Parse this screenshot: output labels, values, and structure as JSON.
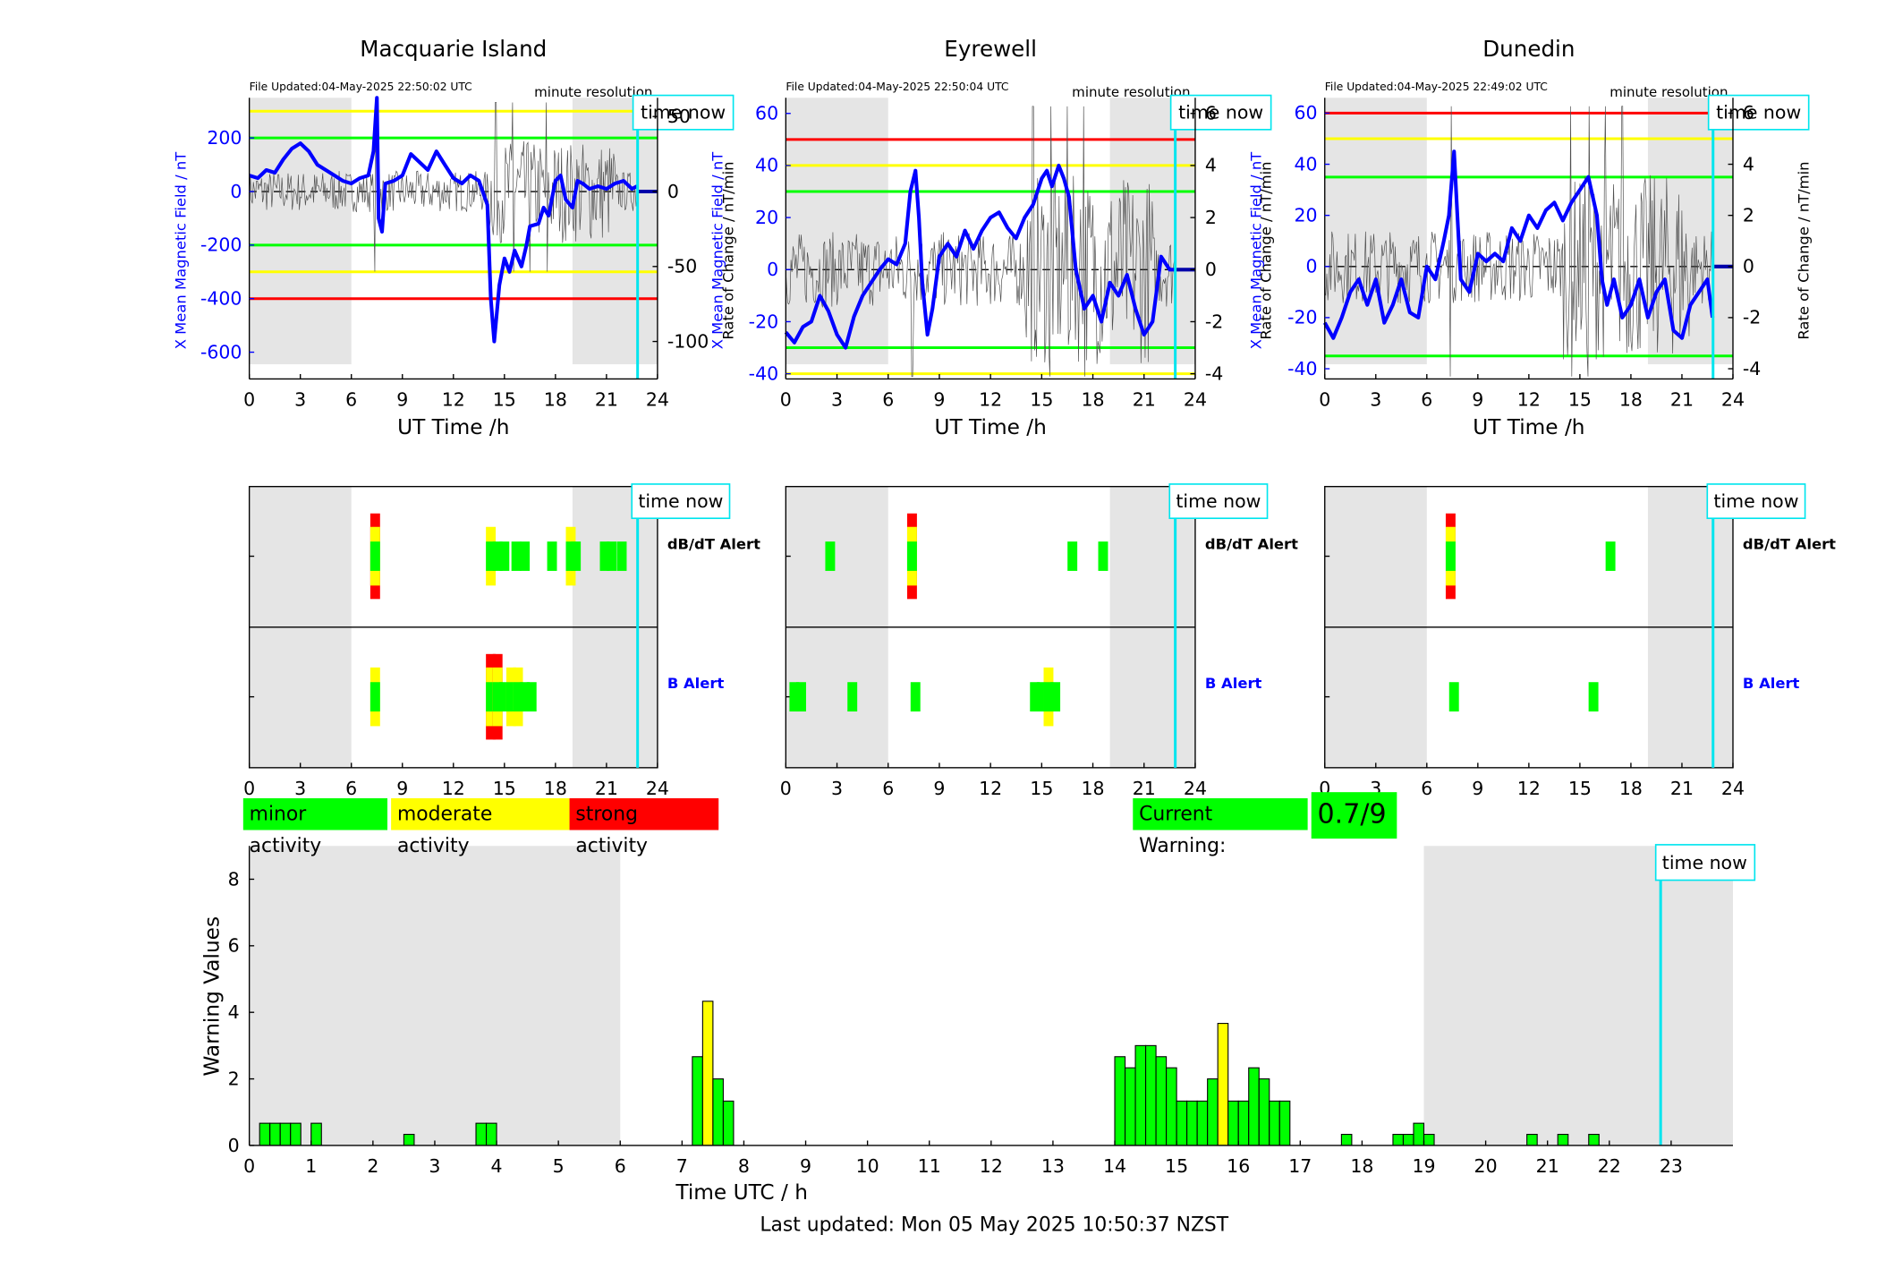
{
  "stations": [
    {
      "name": "Macquarie Island",
      "file_updated": "File Updated:04-May-2025 22:50:02 UTC",
      "resolution": "minute resolution",
      "ylabel_left": "X Mean Magnetic Field / nT",
      "ylabel_right": "Rate of Change / nT/min",
      "left_ticks": [
        200,
        0,
        -200,
        -400,
        -600
      ],
      "right_ticks": [
        50,
        0,
        -50,
        -100
      ],
      "left_range": [
        -700,
        350
      ],
      "right_range": [
        -125,
        62.5
      ],
      "thresholds": [
        {
          "value": 300,
          "color": "#ffff00"
        },
        {
          "value": 200,
          "color": "#00ff00"
        },
        {
          "value": -200,
          "color": "#00ff00"
        },
        {
          "value": -300,
          "color": "#ffff00"
        },
        {
          "value": -400,
          "color": "#ff0000"
        }
      ],
      "field_series": [
        [
          0,
          60
        ],
        [
          0.5,
          50
        ],
        [
          1,
          80
        ],
        [
          1.5,
          70
        ],
        [
          2,
          120
        ],
        [
          2.5,
          160
        ],
        [
          3,
          180
        ],
        [
          3.5,
          150
        ],
        [
          4,
          100
        ],
        [
          4.5,
          80
        ],
        [
          5,
          60
        ],
        [
          5.5,
          40
        ],
        [
          6,
          30
        ],
        [
          6.5,
          50
        ],
        [
          7,
          60
        ],
        [
          7.3,
          150
        ],
        [
          7.5,
          350
        ],
        [
          7.6,
          -100
        ],
        [
          7.8,
          -150
        ],
        [
          8,
          30
        ],
        [
          8.5,
          40
        ],
        [
          9,
          60
        ],
        [
          9.5,
          140
        ],
        [
          10,
          110
        ],
        [
          10.5,
          80
        ],
        [
          11,
          150
        ],
        [
          11.5,
          100
        ],
        [
          12,
          50
        ],
        [
          12.5,
          30
        ],
        [
          13,
          60
        ],
        [
          13.5,
          40
        ],
        [
          14,
          -50
        ],
        [
          14.2,
          -400
        ],
        [
          14.4,
          -560
        ],
        [
          14.7,
          -350
        ],
        [
          15,
          -250
        ],
        [
          15.3,
          -300
        ],
        [
          15.6,
          -220
        ],
        [
          16,
          -280
        ],
        [
          16.3,
          -200
        ],
        [
          16.5,
          -130
        ],
        [
          17,
          -120
        ],
        [
          17.3,
          -60
        ],
        [
          17.6,
          -90
        ],
        [
          18,
          40
        ],
        [
          18.3,
          60
        ],
        [
          18.6,
          -30
        ],
        [
          19,
          -60
        ],
        [
          19.3,
          40
        ],
        [
          19.6,
          30
        ],
        [
          20,
          10
        ],
        [
          20.5,
          20
        ],
        [
          21,
          10
        ],
        [
          21.5,
          30
        ],
        [
          22,
          40
        ],
        [
          22.5,
          10
        ],
        [
          22.8,
          20
        ]
      ],
      "dbdt_alert": [
        {
          "t": 7.4,
          "level": "strong"
        },
        {
          "t": 14.2,
          "level": "moderate"
        },
        {
          "t": 14.6,
          "level": "minor"
        },
        {
          "t": 15.0,
          "level": "minor"
        },
        {
          "t": 15.7,
          "level": "minor"
        },
        {
          "t": 16.2,
          "level": "minor"
        },
        {
          "t": 17.8,
          "level": "minor"
        },
        {
          "t": 18.9,
          "level": "moderate"
        },
        {
          "t": 19.2,
          "level": "minor"
        },
        {
          "t": 20.9,
          "level": "minor"
        },
        {
          "t": 21.3,
          "level": "minor"
        },
        {
          "t": 21.9,
          "level": "minor"
        }
      ],
      "b_alert": [
        {
          "t": 7.4,
          "level": "moderate"
        },
        {
          "t": 14.2,
          "level": "strong"
        },
        {
          "t": 14.6,
          "level": "strong"
        },
        {
          "t": 15.0,
          "level": "minor"
        },
        {
          "t": 15.4,
          "level": "moderate"
        },
        {
          "t": 15.8,
          "level": "moderate"
        },
        {
          "t": 16.2,
          "level": "minor"
        },
        {
          "t": 16.6,
          "level": "minor"
        }
      ]
    },
    {
      "name": "Eyrewell",
      "file_updated": "File Updated:04-May-2025 22:50:04 UTC",
      "resolution": "minute resolution",
      "ylabel_left": "X Mean Magnetic Field / nT",
      "ylabel_right": "Rate of Change / nT/min",
      "left_ticks": [
        60,
        40,
        20,
        0,
        -20,
        -40
      ],
      "right_ticks": [
        6,
        4,
        2,
        0,
        -2,
        -4
      ],
      "left_range": [
        -42,
        66
      ],
      "right_range": [
        -4.2,
        6.6
      ],
      "thresholds": [
        {
          "value": 50,
          "color": "#ff0000"
        },
        {
          "value": 40,
          "color": "#ffff00"
        },
        {
          "value": 30,
          "color": "#00ff00"
        },
        {
          "value": -30,
          "color": "#00ff00"
        },
        {
          "value": -40,
          "color": "#ffff00"
        }
      ],
      "field_series": [
        [
          0,
          -24
        ],
        [
          0.5,
          -28
        ],
        [
          1,
          -22
        ],
        [
          1.5,
          -20
        ],
        [
          2,
          -10
        ],
        [
          2.5,
          -16
        ],
        [
          3,
          -25
        ],
        [
          3.5,
          -30
        ],
        [
          4,
          -18
        ],
        [
          4.5,
          -10
        ],
        [
          5,
          -5
        ],
        [
          5.5,
          0
        ],
        [
          6,
          4
        ],
        [
          6.5,
          2
        ],
        [
          7,
          10
        ],
        [
          7.3,
          30
        ],
        [
          7.6,
          38
        ],
        [
          7.8,
          20
        ],
        [
          8,
          -5
        ],
        [
          8.3,
          -25
        ],
        [
          8.6,
          -15
        ],
        [
          9,
          5
        ],
        [
          9.5,
          10
        ],
        [
          10,
          5
        ],
        [
          10.5,
          15
        ],
        [
          11,
          8
        ],
        [
          11.5,
          15
        ],
        [
          12,
          20
        ],
        [
          12.5,
          22
        ],
        [
          13,
          16
        ],
        [
          13.5,
          12
        ],
        [
          14,
          20
        ],
        [
          14.5,
          25
        ],
        [
          15,
          35
        ],
        [
          15.3,
          38
        ],
        [
          15.6,
          32
        ],
        [
          16,
          40
        ],
        [
          16.3,
          35
        ],
        [
          16.6,
          28
        ],
        [
          17,
          0
        ],
        [
          17.5,
          -15
        ],
        [
          18,
          -10
        ],
        [
          18.5,
          -20
        ],
        [
          19,
          -5
        ],
        [
          19.5,
          -10
        ],
        [
          20,
          -2
        ],
        [
          20.5,
          -15
        ],
        [
          21,
          -25
        ],
        [
          21.5,
          -20
        ],
        [
          22,
          5
        ],
        [
          22.5,
          0
        ],
        [
          22.8,
          0
        ]
      ],
      "dbdt_alert": [
        {
          "t": 2.6,
          "level": "minor"
        },
        {
          "t": 7.4,
          "level": "strong"
        },
        {
          "t": 16.8,
          "level": "minor"
        },
        {
          "t": 18.6,
          "level": "minor"
        }
      ],
      "b_alert": [
        {
          "t": 0.5,
          "level": "minor"
        },
        {
          "t": 0.9,
          "level": "minor"
        },
        {
          "t": 3.9,
          "level": "minor"
        },
        {
          "t": 7.6,
          "level": "minor"
        },
        {
          "t": 14.6,
          "level": "minor"
        },
        {
          "t": 15.0,
          "level": "minor"
        },
        {
          "t": 15.4,
          "level": "moderate"
        },
        {
          "t": 15.8,
          "level": "minor"
        }
      ]
    },
    {
      "name": "Dunedin",
      "file_updated": "File Updated:04-May-2025 22:49:02 UTC",
      "resolution": "minute resolution",
      "ylabel_left": "X Mean Magnetic Field / nT",
      "ylabel_right": "Rate of Change / nT/min",
      "left_ticks": [
        60,
        40,
        20,
        0,
        -20,
        -40
      ],
      "right_ticks": [
        6,
        4,
        2,
        0,
        -2,
        -4
      ],
      "left_range": [
        -44,
        66
      ],
      "right_range": [
        -4.4,
        6.6
      ],
      "thresholds": [
        {
          "value": 60,
          "color": "#ff0000"
        },
        {
          "value": 50,
          "color": "#ffff00"
        },
        {
          "value": 35,
          "color": "#00ff00"
        },
        {
          "value": -35,
          "color": "#00ff00"
        }
      ],
      "field_series": [
        [
          0,
          -22
        ],
        [
          0.5,
          -28
        ],
        [
          1,
          -20
        ],
        [
          1.5,
          -10
        ],
        [
          2,
          -5
        ],
        [
          2.5,
          -15
        ],
        [
          3,
          -5
        ],
        [
          3.5,
          -22
        ],
        [
          4,
          -15
        ],
        [
          4.5,
          -5
        ],
        [
          5,
          -18
        ],
        [
          5.5,
          -20
        ],
        [
          6,
          0
        ],
        [
          6.5,
          -5
        ],
        [
          7,
          10
        ],
        [
          7.3,
          20
        ],
        [
          7.6,
          45
        ],
        [
          7.8,
          20
        ],
        [
          8,
          -5
        ],
        [
          8.5,
          -10
        ],
        [
          9,
          5
        ],
        [
          9.5,
          2
        ],
        [
          10,
          5
        ],
        [
          10.5,
          2
        ],
        [
          11,
          15
        ],
        [
          11.5,
          10
        ],
        [
          12,
          20
        ],
        [
          12.5,
          15
        ],
        [
          13,
          22
        ],
        [
          13.5,
          25
        ],
        [
          14,
          18
        ],
        [
          14.5,
          25
        ],
        [
          15,
          30
        ],
        [
          15.5,
          35
        ],
        [
          16,
          20
        ],
        [
          16.3,
          -5
        ],
        [
          16.6,
          -15
        ],
        [
          17,
          -5
        ],
        [
          17.5,
          -20
        ],
        [
          18,
          -15
        ],
        [
          18.5,
          -5
        ],
        [
          19,
          -20
        ],
        [
          19.5,
          -10
        ],
        [
          20,
          -5
        ],
        [
          20.5,
          -25
        ],
        [
          21,
          -28
        ],
        [
          21.5,
          -15
        ],
        [
          22,
          -10
        ],
        [
          22.5,
          -5
        ],
        [
          22.8,
          -20
        ]
      ],
      "dbdt_alert": [
        {
          "t": 7.4,
          "level": "strong"
        },
        {
          "t": 16.8,
          "level": "minor"
        }
      ],
      "b_alert": [
        {
          "t": 7.6,
          "level": "minor"
        },
        {
          "t": 15.8,
          "level": "minor"
        }
      ]
    }
  ],
  "alerts": {
    "dbdt_label": "dB/dT Alert",
    "b_label": "B Alert",
    "time_now_label": "time now"
  },
  "axis": {
    "ut_label": "UT Time /h",
    "ut_ticks": [
      0,
      3,
      6,
      9,
      12,
      15,
      18,
      21,
      24
    ],
    "night_shading": [
      [
        0,
        6
      ],
      [
        19,
        24
      ]
    ],
    "time_now": 22.83
  },
  "legend": {
    "minor": "minor activity",
    "moderate": "moderate activity",
    "strong": "strong activity"
  },
  "current_warning": {
    "label": "Current Warning:",
    "value": "0.7/9"
  },
  "chart_data": {
    "type": "bar",
    "title": "",
    "xlabel": "Time UTC / h",
    "ylabel": "Warning Values",
    "xlim": [
      0,
      24
    ],
    "ylim": [
      0,
      9
    ],
    "yticks": [
      0,
      2,
      4,
      6,
      8
    ],
    "xticks": [
      0,
      1,
      2,
      3,
      4,
      5,
      6,
      7,
      8,
      9,
      10,
      11,
      12,
      13,
      14,
      15,
      16,
      17,
      18,
      19,
      20,
      21,
      22,
      23
    ],
    "shaded_ranges": [
      [
        0,
        6
      ],
      [
        19,
        24
      ]
    ],
    "time_now": 22.83,
    "bars": [
      {
        "t": 0.1667,
        "v": 0.667,
        "level": "minor"
      },
      {
        "t": 0.3333,
        "v": 0.667,
        "level": "minor"
      },
      {
        "t": 0.5,
        "v": 0.667,
        "level": "minor"
      },
      {
        "t": 0.6667,
        "v": 0.667,
        "level": "minor"
      },
      {
        "t": 1.0,
        "v": 0.667,
        "level": "minor"
      },
      {
        "t": 2.5,
        "v": 0.333,
        "level": "minor"
      },
      {
        "t": 3.6667,
        "v": 0.667,
        "level": "minor"
      },
      {
        "t": 3.8333,
        "v": 0.667,
        "level": "minor"
      },
      {
        "t": 7.1667,
        "v": 2.667,
        "level": "minor"
      },
      {
        "t": 7.3333,
        "v": 4.333,
        "level": "moderate"
      },
      {
        "t": 7.5,
        "v": 2.0,
        "level": "minor"
      },
      {
        "t": 7.6667,
        "v": 1.333,
        "level": "minor"
      },
      {
        "t": 14.0,
        "v": 2.667,
        "level": "minor"
      },
      {
        "t": 14.1667,
        "v": 2.333,
        "level": "minor"
      },
      {
        "t": 14.3333,
        "v": 3.0,
        "level": "minor"
      },
      {
        "t": 14.5,
        "v": 3.0,
        "level": "minor"
      },
      {
        "t": 14.6667,
        "v": 2.667,
        "level": "minor"
      },
      {
        "t": 14.8333,
        "v": 2.333,
        "level": "minor"
      },
      {
        "t": 15.0,
        "v": 1.333,
        "level": "minor"
      },
      {
        "t": 15.1667,
        "v": 1.333,
        "level": "minor"
      },
      {
        "t": 15.3333,
        "v": 1.333,
        "level": "minor"
      },
      {
        "t": 15.5,
        "v": 2.0,
        "level": "minor"
      },
      {
        "t": 15.6667,
        "v": 3.667,
        "level": "moderate"
      },
      {
        "t": 15.8333,
        "v": 1.333,
        "level": "minor"
      },
      {
        "t": 16.0,
        "v": 1.333,
        "level": "minor"
      },
      {
        "t": 16.1667,
        "v": 2.333,
        "level": "minor"
      },
      {
        "t": 16.3333,
        "v": 2.0,
        "level": "minor"
      },
      {
        "t": 16.5,
        "v": 1.333,
        "level": "minor"
      },
      {
        "t": 16.6667,
        "v": 1.333,
        "level": "minor"
      },
      {
        "t": 17.6667,
        "v": 0.333,
        "level": "minor"
      },
      {
        "t": 18.5,
        "v": 0.333,
        "level": "minor"
      },
      {
        "t": 18.6667,
        "v": 0.333,
        "level": "minor"
      },
      {
        "t": 18.8333,
        "v": 0.667,
        "level": "minor"
      },
      {
        "t": 19.0,
        "v": 0.333,
        "level": "minor"
      },
      {
        "t": 20.6667,
        "v": 0.333,
        "level": "minor"
      },
      {
        "t": 21.1667,
        "v": 0.333,
        "level": "minor"
      },
      {
        "t": 21.6667,
        "v": 0.333,
        "level": "minor"
      }
    ]
  },
  "footer": {
    "last_updated": "Last updated: Mon 05 May 2025 10:50:37 NZST"
  },
  "colors": {
    "field_line": "#0000ff",
    "rate_line": "#505050",
    "time_now": "#00e5ee",
    "shading": "#e5e5e5",
    "minor": "#00ff00",
    "moderate": "#ffff00",
    "strong": "#ff0000"
  }
}
